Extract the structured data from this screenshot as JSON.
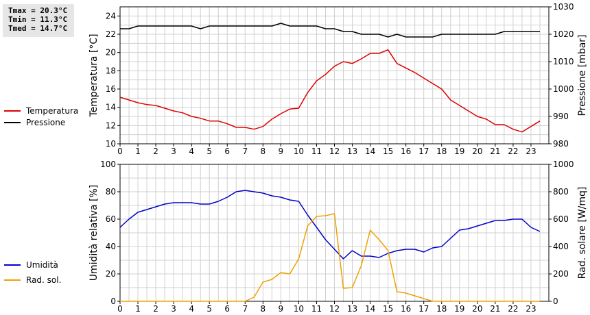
{
  "stats": {
    "tmax": "Tmax = 20.3°C",
    "tmin": "Tmin = 11.3°C",
    "tmed": "Tmed = 14.7°C"
  },
  "colors": {
    "temperature": "#dd0000",
    "pressure": "#000000",
    "humidity": "#0000cc",
    "solar": "#f0a000",
    "grid": "#d0d0d0"
  },
  "chart_data": [
    {
      "type": "line",
      "x_ticks": [
        0,
        1,
        2,
        3,
        4,
        5,
        6,
        7,
        8,
        9,
        10,
        11,
        12,
        13,
        14,
        15,
        16,
        17,
        18,
        19,
        20,
        21,
        22,
        23
      ],
      "xlim": [
        0,
        24
      ],
      "ylabel": "Temperatura [°C]",
      "ylim": [
        10,
        25
      ],
      "y_ticks": [
        10,
        12,
        14,
        16,
        18,
        20,
        22,
        24
      ],
      "y2label": "Pressione [mbar]",
      "y2lim": [
        980,
        1030
      ],
      "y2_ticks": [
        980,
        990,
        1000,
        1010,
        1020,
        1030
      ],
      "grid": true,
      "legend_placement": "left",
      "series": [
        {
          "name": "Temperatura",
          "axis": "left",
          "x": [
            0,
            0.5,
            1,
            1.5,
            2,
            2.5,
            3,
            3.5,
            4,
            4.5,
            5,
            5.5,
            6,
            6.5,
            7,
            7.5,
            8,
            8.5,
            9,
            9.5,
            10,
            10.5,
            11,
            11.5,
            12,
            12.5,
            13,
            13.5,
            14,
            14.5,
            15,
            15.5,
            16,
            16.5,
            17,
            17.5,
            18,
            18.5,
            19,
            19.5,
            20,
            20.5,
            21,
            21.5,
            22,
            22.5,
            23,
            23.5
          ],
          "values": [
            15.1,
            14.8,
            14.5,
            14.3,
            14.2,
            13.9,
            13.6,
            13.4,
            13.0,
            12.8,
            12.5,
            12.5,
            12.2,
            11.8,
            11.8,
            11.6,
            11.9,
            12.7,
            13.3,
            13.8,
            13.9,
            15.6,
            16.9,
            17.6,
            18.5,
            19.0,
            18.8,
            19.3,
            19.9,
            19.9,
            20.3,
            18.8,
            18.3,
            17.8,
            17.2,
            16.6,
            16.0,
            14.8,
            14.2,
            13.6,
            13.0,
            12.7,
            12.1,
            12.1,
            11.6,
            11.3,
            11.9,
            12.5
          ]
        },
        {
          "name": "Pressione",
          "axis": "right",
          "x": [
            0,
            0.5,
            1,
            1.5,
            2,
            2.5,
            3,
            3.5,
            4,
            4.5,
            5,
            5.5,
            6,
            6.5,
            7,
            7.5,
            8,
            8.5,
            9,
            9.5,
            10,
            10.5,
            11,
            11.5,
            12,
            12.5,
            13,
            13.5,
            14,
            14.5,
            15,
            15.5,
            16,
            16.5,
            17,
            17.5,
            18,
            18.5,
            19,
            19.5,
            20,
            20.5,
            21,
            21.5,
            22,
            22.5,
            23,
            23.5
          ],
          "values": [
            1022,
            1022,
            1023,
            1023,
            1023,
            1023,
            1023,
            1023,
            1023,
            1022,
            1023,
            1023,
            1023,
            1023,
            1023,
            1023,
            1023,
            1023,
            1024,
            1023,
            1023,
            1023,
            1023,
            1022,
            1022,
            1021,
            1021,
            1020,
            1020,
            1020,
            1019,
            1020,
            1019,
            1019,
            1019,
            1019,
            1020,
            1020,
            1020,
            1020,
            1020,
            1020,
            1020,
            1021,
            1021,
            1021,
            1021,
            1021
          ]
        }
      ]
    },
    {
      "type": "line",
      "x_ticks": [
        0,
        1,
        2,
        3,
        4,
        5,
        6,
        7,
        8,
        9,
        10,
        11,
        12,
        13,
        14,
        15,
        16,
        17,
        18,
        19,
        20,
        21,
        22,
        23
      ],
      "xlim": [
        0,
        24
      ],
      "ylabel": "Umidità relativa [%]",
      "ylim": [
        0,
        100
      ],
      "y_ticks": [
        0,
        20,
        40,
        60,
        80,
        100
      ],
      "y2label": "Rad. solare [W/mq]",
      "y2lim": [
        0,
        1000
      ],
      "y2_ticks": [
        0,
        200,
        400,
        600,
        800,
        1000
      ],
      "grid": true,
      "legend_placement": "left",
      "series": [
        {
          "name": "Umidità",
          "axis": "left",
          "x": [
            0,
            0.5,
            1,
            1.5,
            2,
            2.5,
            3,
            3.5,
            4,
            4.5,
            5,
            5.5,
            6,
            6.5,
            7,
            7.5,
            8,
            8.5,
            9,
            9.5,
            10,
            10.5,
            11,
            11.5,
            12,
            12.5,
            13,
            13.5,
            14,
            14.5,
            15,
            15.5,
            16,
            16.5,
            17,
            17.5,
            18,
            18.5,
            19,
            19.5,
            20,
            20.5,
            21,
            21.5,
            22,
            22.5,
            23,
            23.5
          ],
          "values": [
            54,
            60,
            65,
            67,
            69,
            71,
            72,
            72,
            72,
            71,
            71,
            73,
            76,
            80,
            81,
            80,
            79,
            77,
            76,
            74,
            73,
            63,
            54,
            45,
            38,
            31,
            37,
            33,
            33,
            32,
            35,
            37,
            38,
            38,
            36,
            39,
            40,
            46,
            52,
            53,
            55,
            57,
            59,
            59,
            60,
            60,
            54,
            51
          ]
        },
        {
          "name": "Rad. sol.",
          "axis": "right",
          "x": [
            0,
            0.5,
            1,
            1.5,
            2,
            2.5,
            3,
            3.5,
            4,
            4.5,
            5,
            5.5,
            6,
            6.5,
            7,
            7.5,
            8,
            8.5,
            9,
            9.5,
            10,
            10.5,
            11,
            11.5,
            12,
            12.5,
            13,
            13.5,
            14,
            14.5,
            15,
            15.5,
            16,
            16.5,
            17,
            17.5,
            18,
            18.5,
            19,
            19.5,
            20,
            20.5,
            21,
            21.5,
            22,
            22.5,
            23,
            23.5
          ],
          "values": [
            0,
            0,
            0,
            0,
            0,
            0,
            0,
            0,
            0,
            0,
            0,
            0,
            0,
            0,
            0,
            30,
            140,
            160,
            210,
            200,
            310,
            550,
            620,
            625,
            640,
            95,
            100,
            260,
            520,
            450,
            370,
            70,
            60,
            40,
            20,
            0,
            0,
            0,
            0,
            0,
            0,
            0,
            0,
            0,
            0,
            0,
            0,
            0
          ]
        }
      ]
    }
  ]
}
